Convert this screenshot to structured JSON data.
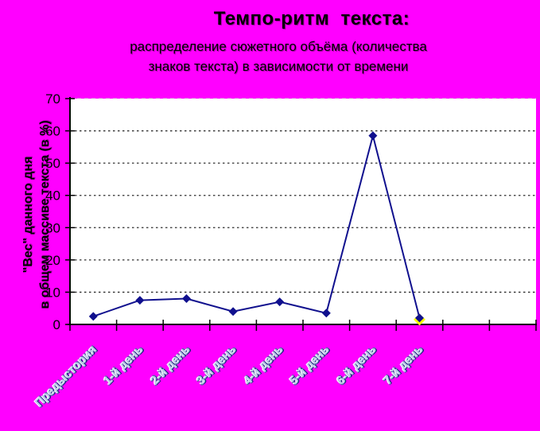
{
  "title": "Темпо-ритм  текста:",
  "subtitle": "распределение  сюжетного объёма (количества\nзнаков текста) в зависимости от времени",
  "colors": {
    "background": "#ff00ff",
    "plot_bg": "#ffffff",
    "line": "#10108e",
    "marker": "#10108e",
    "last_marker_halo": "#ffff00",
    "grid": "#2e2e2e",
    "top_grid": "#d9d9d9",
    "axis": "#000000",
    "xlabel_fill": "#b9c6e6",
    "xlabel_shadow_dark": "#101c78",
    "xlabel_shadow_mid": "#5868aa",
    "xlabel_shadow_light": "#ffffff",
    "tick_label": "#000000"
  },
  "chart_data": {
    "type": "line",
    "categories": [
      "Предыстория",
      "1-й день",
      "2-й день",
      "3-й день",
      "4-й день",
      "5-й день",
      "6-й день",
      "7-й день"
    ],
    "values": [
      2.5,
      7.5,
      8,
      4,
      7,
      3.5,
      58.5,
      2
    ],
    "title": "Темпо-ритм текста: распределение сюжетного объёма (количества знаков текста) в зависимости от времени",
    "xlabel": "",
    "ylabel": "\"Вес\" данного дня\nв общем массиве текста (в %)",
    "ylim": [
      0,
      70
    ],
    "yticks": [
      0,
      10,
      20,
      30,
      40,
      50,
      60,
      70
    ],
    "plot_slots": 10,
    "grid": "horizontal-dotted",
    "legend": "none",
    "marker": "diamond",
    "last_point_highlight": "yellow-diamond-halo"
  }
}
